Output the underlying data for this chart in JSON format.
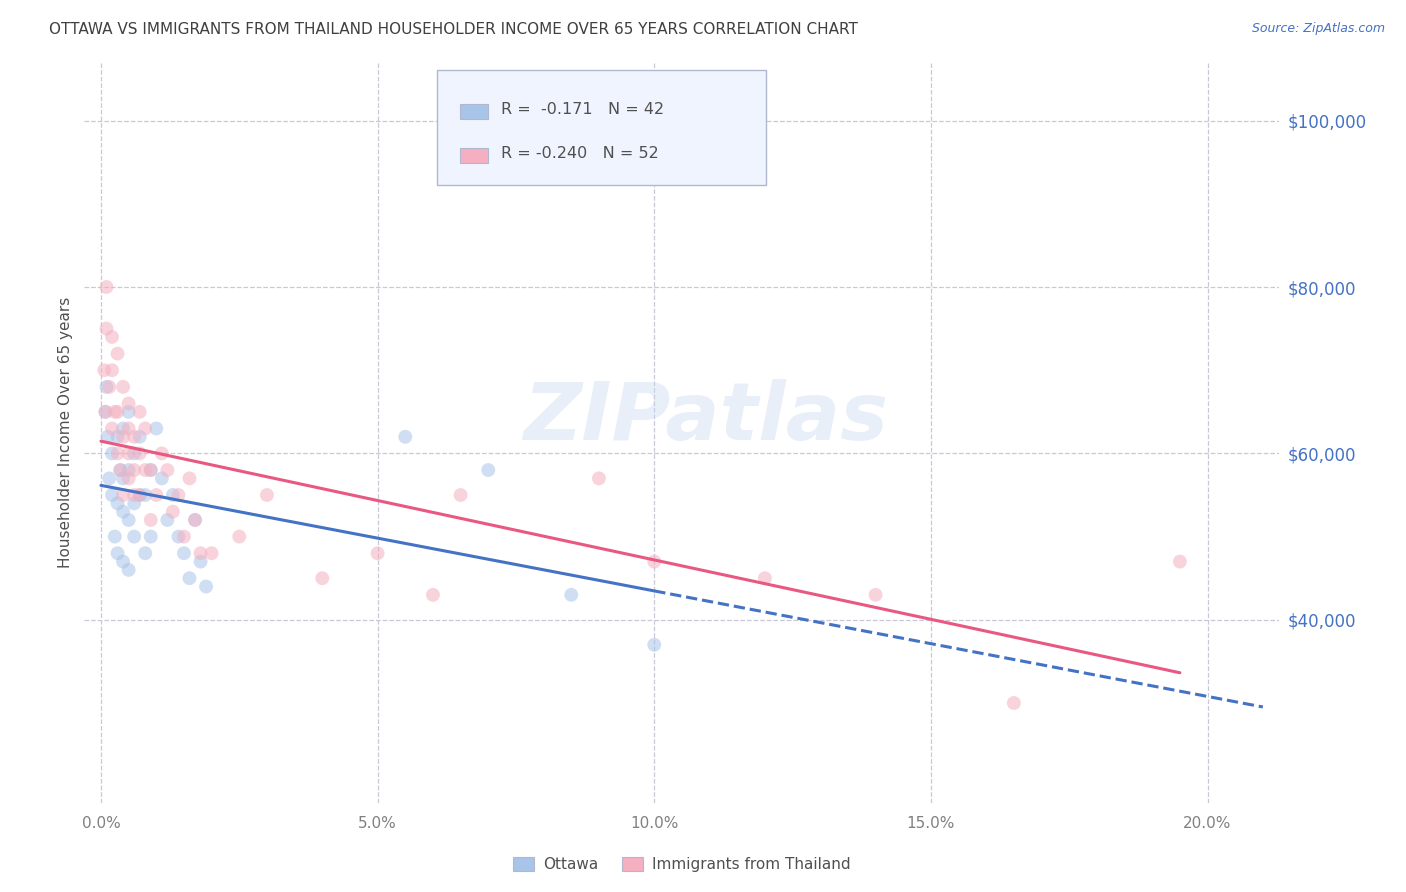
{
  "title": "OTTAWA VS IMMIGRANTS FROM THAILAND HOUSEHOLDER INCOME OVER 65 YEARS CORRELATION CHART",
  "source": "Source: ZipAtlas.com",
  "ylabel": "Householder Income Over 65 years",
  "xlabel_ticks": [
    "0.0%",
    "5.0%",
    "10.0%",
    "15.0%",
    "20.0%"
  ],
  "xlabel_values": [
    0.0,
    0.05,
    0.1,
    0.15,
    0.2
  ],
  "ylim": [
    18000,
    107000
  ],
  "xlim": [
    -0.003,
    0.213
  ],
  "yticks": [
    40000,
    60000,
    80000,
    100000
  ],
  "ytick_labels": [
    "$40,000",
    "$60,000",
    "$80,000",
    "$100,000"
  ],
  "legend_r_ottawa": "R =  -0.171",
  "legend_n_ottawa": "N = 42",
  "legend_r_thailand": "R = -0.240",
  "legend_n_thailand": "N = 52",
  "ottawa_color": "#a8c4e8",
  "thailand_color": "#f4b0c0",
  "ottawa_line_color": "#4472c4",
  "thailand_line_color": "#e85880",
  "title_color": "#404040",
  "axis_label_color": "#505050",
  "ytick_color": "#4472c4",
  "xtick_color": "#808080",
  "watermark_text": "ZIPatlas",
  "ottawa_x": [
    0.0008,
    0.001,
    0.0012,
    0.0015,
    0.002,
    0.002,
    0.0025,
    0.003,
    0.003,
    0.003,
    0.0035,
    0.004,
    0.004,
    0.004,
    0.004,
    0.005,
    0.005,
    0.005,
    0.005,
    0.006,
    0.006,
    0.006,
    0.007,
    0.007,
    0.008,
    0.008,
    0.009,
    0.009,
    0.01,
    0.011,
    0.012,
    0.013,
    0.014,
    0.015,
    0.016,
    0.017,
    0.018,
    0.019,
    0.055,
    0.07,
    0.085,
    0.1
  ],
  "ottawa_y": [
    65000,
    68000,
    62000,
    57000,
    55000,
    60000,
    50000,
    48000,
    54000,
    62000,
    58000,
    53000,
    57000,
    63000,
    47000,
    52000,
    46000,
    58000,
    65000,
    50000,
    54000,
    60000,
    55000,
    62000,
    48000,
    55000,
    50000,
    58000,
    63000,
    57000,
    52000,
    55000,
    50000,
    48000,
    45000,
    52000,
    47000,
    44000,
    62000,
    58000,
    43000,
    37000
  ],
  "thailand_x": [
    0.0006,
    0.0008,
    0.001,
    0.001,
    0.0015,
    0.002,
    0.002,
    0.002,
    0.0025,
    0.003,
    0.003,
    0.003,
    0.0035,
    0.004,
    0.004,
    0.004,
    0.005,
    0.005,
    0.005,
    0.005,
    0.006,
    0.006,
    0.006,
    0.007,
    0.007,
    0.007,
    0.008,
    0.008,
    0.009,
    0.009,
    0.01,
    0.011,
    0.012,
    0.013,
    0.014,
    0.015,
    0.016,
    0.017,
    0.018,
    0.02,
    0.025,
    0.03,
    0.04,
    0.05,
    0.06,
    0.065,
    0.09,
    0.1,
    0.12,
    0.14,
    0.165,
    0.195
  ],
  "thailand_y": [
    70000,
    65000,
    75000,
    80000,
    68000,
    63000,
    70000,
    74000,
    65000,
    60000,
    65000,
    72000,
    58000,
    62000,
    68000,
    55000,
    60000,
    66000,
    57000,
    63000,
    55000,
    62000,
    58000,
    65000,
    60000,
    55000,
    58000,
    63000,
    52000,
    58000,
    55000,
    60000,
    58000,
    53000,
    55000,
    50000,
    57000,
    52000,
    48000,
    48000,
    50000,
    55000,
    45000,
    48000,
    43000,
    55000,
    57000,
    47000,
    45000,
    43000,
    30000,
    47000
  ],
  "background_color": "#ffffff",
  "grid_color": "#c8c8d8",
  "marker_size": 100,
  "marker_alpha": 0.55,
  "legend_facecolor": "#f0f4ff",
  "legend_edgecolor": "#b0b8d0"
}
